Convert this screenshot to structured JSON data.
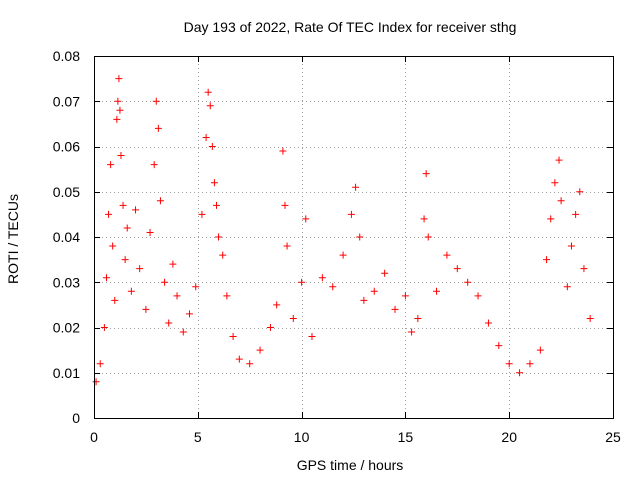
{
  "chart_data": {
    "type": "scatter",
    "title": "Day 193 of 2022, Rate Of TEC Index for receiver sthg",
    "xlabel": "GPS time / hours",
    "ylabel": "ROTI / TECUs",
    "xlim": [
      0,
      25
    ],
    "ylim": [
      0,
      0.08
    ],
    "xticks": [
      0,
      5,
      10,
      15,
      20,
      25
    ],
    "xtick_labels": [
      "0",
      "5",
      "10",
      "15",
      "20",
      "25"
    ],
    "yticks": [
      0,
      0.01,
      0.02,
      0.03,
      0.04,
      0.05,
      0.06,
      0.07,
      0.08
    ],
    "ytick_labels": [
      "0",
      "0.01",
      "0.02",
      "0.03",
      "0.04",
      "0.05",
      "0.06",
      "0.07",
      "0.08"
    ],
    "grid": true,
    "marker": "plus",
    "color": "#ff0000",
    "series": [
      {
        "name": "",
        "points": [
          [
            0.1,
            0.008
          ],
          [
            0.3,
            0.012
          ],
          [
            0.5,
            0.02
          ],
          [
            0.6,
            0.031
          ],
          [
            0.7,
            0.045
          ],
          [
            0.8,
            0.056
          ],
          [
            0.9,
            0.038
          ],
          [
            1.0,
            0.026
          ],
          [
            1.1,
            0.066
          ],
          [
            1.15,
            0.07
          ],
          [
            1.2,
            0.075
          ],
          [
            1.25,
            0.068
          ],
          [
            1.3,
            0.058
          ],
          [
            1.4,
            0.047
          ],
          [
            1.5,
            0.035
          ],
          [
            1.6,
            0.042
          ],
          [
            1.8,
            0.028
          ],
          [
            2.0,
            0.046
          ],
          [
            2.2,
            0.033
          ],
          [
            2.5,
            0.024
          ],
          [
            2.7,
            0.041
          ],
          [
            2.9,
            0.056
          ],
          [
            3.0,
            0.07
          ],
          [
            3.1,
            0.064
          ],
          [
            3.2,
            0.048
          ],
          [
            3.4,
            0.03
          ],
          [
            3.6,
            0.021
          ],
          [
            3.8,
            0.034
          ],
          [
            4.0,
            0.027
          ],
          [
            4.3,
            0.019
          ],
          [
            4.6,
            0.023
          ],
          [
            4.9,
            0.029
          ],
          [
            5.2,
            0.045
          ],
          [
            5.4,
            0.062
          ],
          [
            5.5,
            0.072
          ],
          [
            5.6,
            0.069
          ],
          [
            5.7,
            0.06
          ],
          [
            5.8,
            0.052
          ],
          [
            5.9,
            0.047
          ],
          [
            6.0,
            0.04
          ],
          [
            6.2,
            0.036
          ],
          [
            6.4,
            0.027
          ],
          [
            6.7,
            0.018
          ],
          [
            7.0,
            0.013
          ],
          [
            7.5,
            0.012
          ],
          [
            8.0,
            0.015
          ],
          [
            8.5,
            0.02
          ],
          [
            8.8,
            0.025
          ],
          [
            9.1,
            0.059
          ],
          [
            9.2,
            0.047
          ],
          [
            9.3,
            0.038
          ],
          [
            9.6,
            0.022
          ],
          [
            10.0,
            0.03
          ],
          [
            10.2,
            0.044
          ],
          [
            10.5,
            0.018
          ],
          [
            11.0,
            0.031
          ],
          [
            11.5,
            0.029
          ],
          [
            12.0,
            0.036
          ],
          [
            12.4,
            0.045
          ],
          [
            12.6,
            0.051
          ],
          [
            12.8,
            0.04
          ],
          [
            13.0,
            0.026
          ],
          [
            13.5,
            0.028
          ],
          [
            14.0,
            0.032
          ],
          [
            14.5,
            0.024
          ],
          [
            15.0,
            0.027
          ],
          [
            15.3,
            0.019
          ],
          [
            15.6,
            0.022
          ],
          [
            15.9,
            0.044
          ],
          [
            16.0,
            0.054
          ],
          [
            16.1,
            0.04
          ],
          [
            16.5,
            0.028
          ],
          [
            17.0,
            0.036
          ],
          [
            17.5,
            0.033
          ],
          [
            18.0,
            0.03
          ],
          [
            18.5,
            0.027
          ],
          [
            19.0,
            0.021
          ],
          [
            19.5,
            0.016
          ],
          [
            20.0,
            0.012
          ],
          [
            20.5,
            0.01
          ],
          [
            21.0,
            0.012
          ],
          [
            21.5,
            0.015
          ],
          [
            21.8,
            0.035
          ],
          [
            22.0,
            0.044
          ],
          [
            22.2,
            0.052
          ],
          [
            22.4,
            0.057
          ],
          [
            22.5,
            0.048
          ],
          [
            22.8,
            0.029
          ],
          [
            23.0,
            0.038
          ],
          [
            23.2,
            0.045
          ],
          [
            23.4,
            0.05
          ],
          [
            23.6,
            0.033
          ],
          [
            23.9,
            0.022
          ]
        ]
      }
    ]
  }
}
